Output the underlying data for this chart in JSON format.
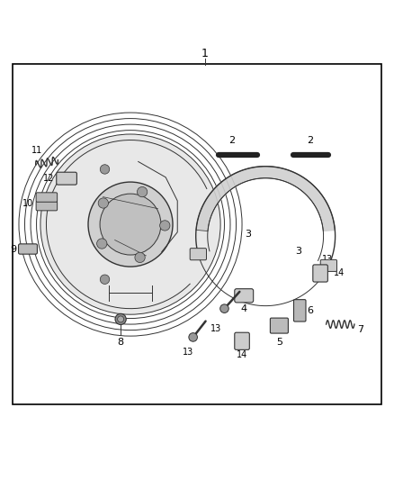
{
  "background_color": "#ffffff",
  "border_color": "#000000",
  "line_color": "#333333",
  "label_color": "#000000",
  "fig_width": 4.38,
  "fig_height": 5.33,
  "part_numbers": [
    "1",
    "2",
    "2",
    "3",
    "3",
    "4",
    "5",
    "6",
    "7",
    "8",
    "9",
    "10",
    "11",
    "12",
    "13",
    "13",
    "14",
    "14"
  ]
}
